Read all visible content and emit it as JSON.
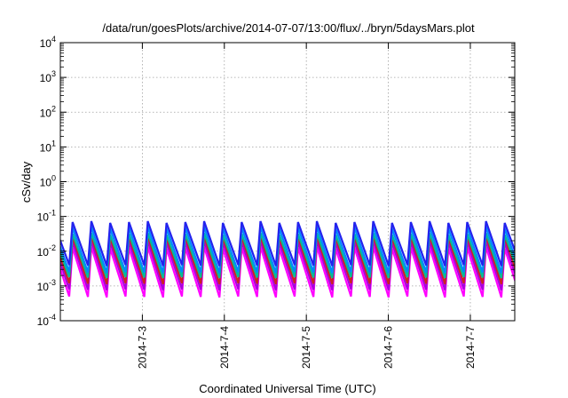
{
  "chart_data": {
    "type": "line",
    "title": "/data/run/goesPlots/archive/2014-07-07/13:00/flux/../bryn/5daysMars.plot",
    "xlabel": "Coordinated Universal Time (UTC)",
    "ylabel": "cSv/day",
    "x_range": [
      "2014-07-02 00:00",
      "2014-07-07 13:00"
    ],
    "x_ticks": [
      {
        "label": "2014-7-3",
        "t": "2014-07-03 00:00"
      },
      {
        "label": "2014-7-4",
        "t": "2014-07-04 00:00"
      },
      {
        "label": "2014-7-5",
        "t": "2014-07-05 00:00"
      },
      {
        "label": "2014-7-6",
        "t": "2014-07-06 00:00"
      },
      {
        "label": "2014-7-7",
        "t": "2014-07-07 00:00"
      }
    ],
    "y_scale": "log",
    "ylim": [
      0.0001,
      10000
    ],
    "y_ticks": [
      {
        "base": "10",
        "exp": "-4",
        "value": 0.0001
      },
      {
        "base": "10",
        "exp": "-3",
        "value": 0.001
      },
      {
        "base": "10",
        "exp": "-2",
        "value": 0.01
      },
      {
        "base": "10",
        "exp": "-1",
        "value": 0.1
      },
      {
        "base": "10",
        "exp": "0",
        "value": 1
      },
      {
        "base": "10",
        "exp": "1",
        "value": 10
      },
      {
        "base": "10",
        "exp": "2",
        "value": 100
      },
      {
        "base": "10",
        "exp": "3",
        "value": 1000
      },
      {
        "base": "10",
        "exp": "4",
        "value": 10000
      }
    ],
    "grid": true,
    "legend": "none",
    "sawtooth_period_hours": 5.5,
    "series": [
      {
        "color": "#ff00ff",
        "peak": 0.012,
        "trough": 0.0005
      },
      {
        "color": "#aa00dd",
        "peak": 0.018,
        "trough": 0.0008
      },
      {
        "color": "#cc2222",
        "peak": 0.025,
        "trough": 0.0012
      },
      {
        "color": "#00bb99",
        "peak": 0.03,
        "trough": 0.0018
      },
      {
        "color": "#0088ff",
        "peak": 0.045,
        "trough": 0.0025
      },
      {
        "color": "#2222ee",
        "peak": 0.065,
        "trough": 0.004
      }
    ]
  }
}
